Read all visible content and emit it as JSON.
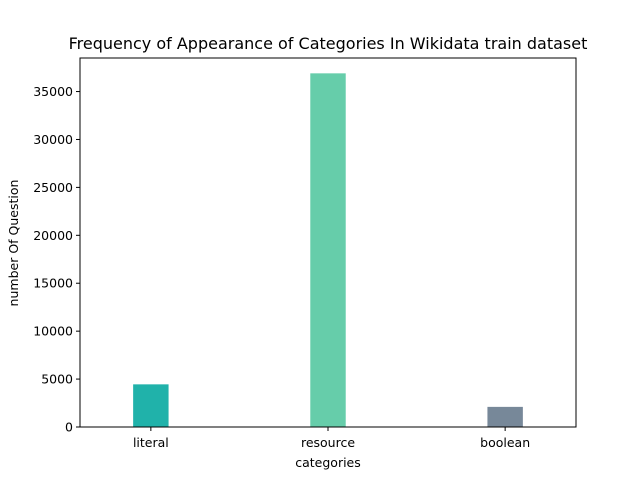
{
  "chart_data": {
    "type": "bar",
    "title": "Frequency of Appearance of Categories In Wikidata train dataset",
    "xlabel": "categories",
    "ylabel": "number Of Question",
    "categories": [
      "literal",
      "resource",
      "boolean"
    ],
    "values": [
      4450,
      36900,
      2100
    ],
    "colors": [
      "#20b2aa",
      "#66cdaa",
      "#778899"
    ],
    "ylim": [
      0,
      38500
    ],
    "yticks": [
      0,
      5000,
      10000,
      15000,
      20000,
      25000,
      30000,
      35000
    ],
    "grid": false,
    "legend": "none"
  }
}
